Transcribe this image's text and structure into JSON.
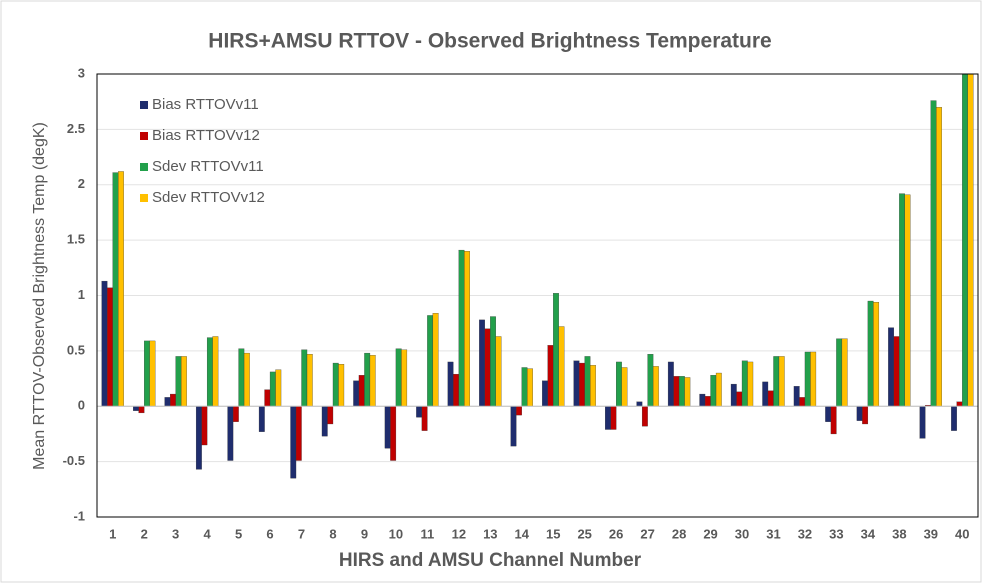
{
  "chart_data": {
    "type": "bar",
    "title": "HIRS+AMSU RTTOV - Observed Brightness Temperature",
    "x_label": "HIRS and AMSU Channel Number",
    "y_label": "Mean RTTOV-Observed Brightness Temp (degK)",
    "categories": [
      "1",
      "2",
      "3",
      "4",
      "5",
      "6",
      "7",
      "8",
      "9",
      "10",
      "11",
      "12",
      "13",
      "14",
      "15",
      "25",
      "26",
      "27",
      "28",
      "29",
      "30",
      "31",
      "32",
      "33",
      "34",
      "38",
      "39",
      "40"
    ],
    "series": [
      {
        "name": "Bias RTTOVv11",
        "color": "#1f2d6e",
        "values": [
          1.13,
          -0.04,
          0.08,
          -0.57,
          -0.49,
          -0.23,
          -0.65,
          -0.27,
          0.23,
          -0.38,
          -0.1,
          0.4,
          0.78,
          -0.36,
          0.23,
          0.41,
          -0.21,
          0.04,
          0.4,
          0.11,
          0.2,
          0.22,
          0.18,
          -0.14,
          -0.13,
          0.71,
          -0.29,
          -0.22
        ]
      },
      {
        "name": "Bias RTTOVv12",
        "color": "#c00000",
        "values": [
          1.07,
          -0.06,
          0.11,
          -0.35,
          -0.14,
          0.15,
          -0.49,
          -0.16,
          0.28,
          -0.49,
          -0.22,
          0.29,
          0.7,
          -0.08,
          0.55,
          0.39,
          -0.21,
          -0.18,
          0.27,
          0.09,
          0.13,
          0.14,
          0.08,
          -0.25,
          -0.16,
          0.63,
          0.01,
          0.04
        ]
      },
      {
        "name": "Sdev RTTOVv11",
        "color": "#22a04b",
        "values": [
          2.11,
          0.59,
          0.45,
          0.62,
          0.52,
          0.31,
          0.51,
          0.39,
          0.48,
          0.52,
          0.82,
          1.41,
          0.81,
          0.35,
          1.02,
          0.45,
          0.4,
          0.47,
          0.27,
          0.28,
          0.41,
          0.45,
          0.49,
          0.61,
          0.95,
          1.92,
          2.76,
          3.0
        ]
      },
      {
        "name": "Sdev RTTOVv12",
        "color": "#ffc000",
        "values": [
          2.12,
          0.59,
          0.45,
          0.63,
          0.48,
          0.33,
          0.47,
          0.38,
          0.46,
          0.51,
          0.84,
          1.4,
          0.63,
          0.34,
          0.72,
          0.37,
          0.35,
          0.36,
          0.26,
          0.3,
          0.4,
          0.45,
          0.49,
          0.61,
          0.94,
          1.91,
          2.7,
          3.0
        ]
      }
    ],
    "ylim": [
      -1,
      3
    ],
    "yticks": [
      -1,
      -0.5,
      0,
      0.5,
      1,
      1.5,
      2,
      2.5,
      3
    ],
    "grid": true,
    "legend": "top-left"
  }
}
